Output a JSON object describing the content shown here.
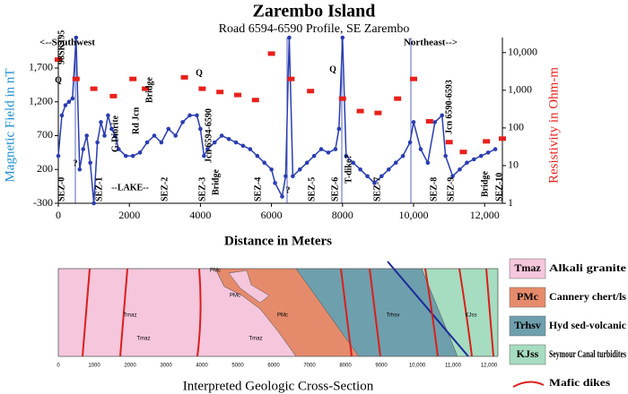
{
  "chart_data": {
    "type": "line",
    "title": "Zarembo Island",
    "subtitle": "Road 6594-6590 Profile, SE Zarembo",
    "x_label": "Distance in Meters",
    "y_label": "Magnetic Field in nT",
    "y2_label": "Resistivity in Ohm-m",
    "xlim": [
      0,
      12500
    ],
    "xticks": [
      0,
      2000,
      4000,
      6000,
      8000,
      {
        "value": 10000,
        "label": "10,000"
      },
      {
        "value": 12000,
        "label": "12,000"
      }
    ],
    "ylim": [
      -300,
      2150
    ],
    "yticks": [
      -300,
      200,
      700,
      {
        "value": 1200,
        "label": "1,200"
      },
      {
        "value": 1700,
        "label": "1,700"
      }
    ],
    "y2lim": [
      1,
      25000
    ],
    "y2log": true,
    "y2ticks": [
      1,
      10,
      100,
      {
        "value": 1000,
        "label": "1,000"
      },
      {
        "value": 10000,
        "label": "10,000"
      }
    ],
    "series": [
      {
        "color": "#2a3db0",
        "x": [
          0,
          100,
          200,
          300,
          400,
          500,
          600,
          700,
          800,
          900,
          1000,
          1100,
          1200,
          1300,
          1400,
          1500,
          1600,
          1700,
          1900,
          2100,
          2300,
          2500,
          2700,
          2900,
          3100,
          3300,
          3500,
          3700,
          3900,
          4000,
          4100,
          4200,
          4400,
          4600,
          4800,
          5000,
          5200,
          5400,
          5600,
          5800,
          6000,
          6100,
          6300,
          6400,
          6500,
          6600,
          6800,
          7000,
          7200,
          7400,
          7600,
          7800,
          7900,
          8000,
          8100,
          8300,
          8500,
          8700,
          8900,
          9100,
          9300,
          9500,
          9700,
          9900,
          10000,
          10200,
          10400,
          10600,
          10800,
          10900,
          11100,
          11300,
          11500,
          11700,
          11900,
          12100,
          12300
        ],
        "values": [
          400,
          1000,
          1150,
          1200,
          1250,
          2150,
          200,
          500,
          700,
          300,
          -300,
          600,
          900,
          700,
          1000,
          800,
          700,
          500,
          400,
          400,
          450,
          600,
          700,
          600,
          800,
          700,
          900,
          1000,
          1000,
          800,
          400,
          500,
          600,
          700,
          650,
          600,
          550,
          500,
          400,
          300,
          200,
          0,
          -200,
          100,
          2150,
          100,
          200,
          300,
          400,
          500,
          450,
          500,
          800,
          2150,
          400,
          300,
          200,
          100,
          0,
          100,
          200,
          300,
          400,
          600,
          900,
          500,
          300,
          900,
          1000,
          400,
          100,
          200,
          300,
          350,
          400,
          450,
          500
        ]
      },
      {
        "color": "#e8201c",
        "axis": "y2",
        "marker": "rect",
        "x": [
          0,
          500,
          1000,
          1550,
          2100,
          2450,
          3550,
          4050,
          4550,
          5050,
          5550,
          6000,
          6550,
          7100,
          8000,
          8500,
          9000,
          9550,
          10000,
          10450,
          11000,
          11400,
          12050,
          12500
        ],
        "values": [
          6500,
          2000,
          1100,
          700,
          2000,
          1100,
          2200,
          1100,
          900,
          750,
          550,
          9400,
          2000,
          950,
          600,
          280,
          250,
          600,
          2000,
          150,
          42,
          23,
          44,
          52
        ]
      }
    ],
    "annotations": [
      "SEZ-0",
      "SEZ-1",
      "SEZ-2",
      "SEZ-3",
      "SEZ-4",
      "SEZ-5",
      "SEZ-6",
      "SEZ-7",
      "SEZ-8",
      "SEZ-9",
      "SEZ-10",
      "98SK195",
      "<--Southwest",
      "Northeast-->",
      "Q",
      "?",
      "G-Diorite",
      "--LAKE--",
      "Rd Jcn",
      "Bridge",
      "Q",
      "Jcn 6594-6590",
      "Bridge",
      "?",
      "Q",
      "T-dike?",
      "Jcn 6590-6593",
      "Bridge"
    ]
  },
  "section": {
    "title": "Interpreted Geologic Cross-Section",
    "xlim": [
      0,
      12000
    ],
    "xticks": [
      0,
      1000,
      2000,
      3000,
      4000,
      5000,
      6000,
      7000,
      8000,
      9000,
      {
        "value": 10000,
        "label": "10,000"
      },
      {
        "value": 11000,
        "label": "11,000"
      },
      {
        "value": 12000,
        "label": "12,000"
      }
    ],
    "unit_labels": [
      "Tmaz",
      "PMc",
      "PMc",
      "PMc",
      "Tmaz",
      "Tmaz",
      "Trhsv",
      "KJss"
    ],
    "legend": [
      {
        "code": "Tmaz",
        "label": "Alkali granite",
        "color": "#f5c6dc"
      },
      {
        "code": "PMc",
        "label": "Cannery chert/ls",
        "color": "#e58b6b"
      },
      {
        "code": "Trhsv",
        "label": "Hyd sed-volcanic",
        "color": "#6e9fad"
      },
      {
        "code": "KJss",
        "label": "Seymour Canal turbidites",
        "color": "#a6dcc0"
      },
      {
        "label": "Mafic dikes",
        "color": "#d8201c"
      }
    ]
  }
}
